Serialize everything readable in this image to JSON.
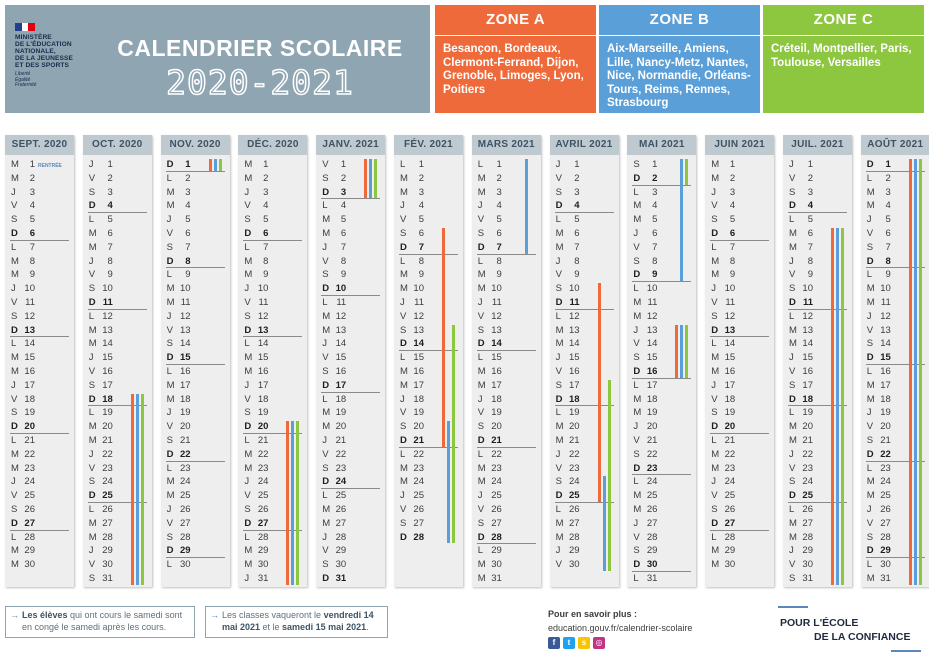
{
  "logo": {
    "lines": [
      "MINISTÈRE",
      "DE L'ÉDUCATION",
      "NATIONALE,",
      "DE LA JEUNESSE",
      "ET DES SPORTS"
    ],
    "motto": [
      "Liberté",
      "Égalité",
      "Fraternité"
    ]
  },
  "title": "CALENDRIER SCOLAIRE",
  "year": "2020-2021",
  "colors": {
    "zone_a": "#ef6a3a",
    "zone_b": "#5a9fd8",
    "zone_c": "#8dc63f",
    "header_bg": "#8fa6b2"
  },
  "zones": [
    {
      "name": "ZONE A",
      "cities": "Besançon, Bordeaux, Clermont-Ferrand, Dijon, Grenoble, Limoges, Lyon, Poitiers"
    },
    {
      "name": "ZONE B",
      "cities": "Aix-Marseille, Amiens, Lille, Nancy-Metz, Nantes, Nice, Normandie, Orléans-Tours, Reims, Rennes, Strasbourg"
    },
    {
      "name": "ZONE C",
      "cities": "Créteil, Montpellier, Paris, Toulouse, Versailles"
    }
  ],
  "months": [
    {
      "label": "SEPT. 2020",
      "start": 2,
      "days": 30,
      "note": "RENTRÉE"
    },
    {
      "label": "OCT. 2020",
      "start": 4,
      "days": 31
    },
    {
      "label": "NOV. 2020",
      "start": 0,
      "days": 30
    },
    {
      "label": "DÉC. 2020",
      "start": 2,
      "days": 31
    },
    {
      "label": "JANV. 2021",
      "start": 5,
      "days": 31
    },
    {
      "label": "FÉV. 2021",
      "start": 1,
      "days": 28
    },
    {
      "label": "MARS 2021",
      "start": 1,
      "days": 31
    },
    {
      "label": "AVRIL 2021",
      "start": 4,
      "days": 30
    },
    {
      "label": "MAI 2021",
      "start": 6,
      "days": 31
    },
    {
      "label": "JUIN 2021",
      "start": 2,
      "days": 30
    },
    {
      "label": "JUIL. 2021",
      "start": 4,
      "days": 31
    },
    {
      "label": "AOÛT 2021",
      "start": 0,
      "days": 31
    }
  ],
  "weekday_letters": [
    "D",
    "L",
    "M",
    "M",
    "J",
    "V",
    "S"
  ],
  "holidays": [
    {
      "month": 1,
      "zone": "a",
      "from": 18,
      "to": 31
    },
    {
      "month": 1,
      "zone": "b",
      "from": 18,
      "to": 31
    },
    {
      "month": 1,
      "zone": "c",
      "from": 18,
      "to": 31
    },
    {
      "month": 2,
      "zone": "a",
      "from": 1,
      "to": 1
    },
    {
      "month": 2,
      "zone": "b",
      "from": 1,
      "to": 1
    },
    {
      "month": 2,
      "zone": "c",
      "from": 1,
      "to": 1
    },
    {
      "month": 3,
      "zone": "a",
      "from": 20,
      "to": 31
    },
    {
      "month": 3,
      "zone": "b",
      "from": 20,
      "to": 31
    },
    {
      "month": 3,
      "zone": "c",
      "from": 20,
      "to": 31
    },
    {
      "month": 4,
      "zone": "a",
      "from": 1,
      "to": 3
    },
    {
      "month": 4,
      "zone": "b",
      "from": 1,
      "to": 3
    },
    {
      "month": 4,
      "zone": "c",
      "from": 1,
      "to": 3
    },
    {
      "month": 5,
      "zone": "a",
      "from": 6,
      "to": 21
    },
    {
      "month": 5,
      "zone": "c",
      "from": 13,
      "to": 28
    },
    {
      "month": 5,
      "zone": "b",
      "from": 20,
      "to": 28
    },
    {
      "month": 6,
      "zone": "b",
      "from": 1,
      "to": 7
    },
    {
      "month": 7,
      "zone": "a",
      "from": 10,
      "to": 25
    },
    {
      "month": 7,
      "zone": "c",
      "from": 17,
      "to": 30
    },
    {
      "month": 7,
      "zone": "b",
      "from": 24,
      "to": 30
    },
    {
      "month": 8,
      "zone": "c",
      "from": 1,
      "to": 2
    },
    {
      "month": 8,
      "zone": "b",
      "from": 1,
      "to": 9
    },
    {
      "month": 8,
      "zone": "a",
      "from": 13,
      "to": 16
    },
    {
      "month": 8,
      "zone": "b",
      "from": 13,
      "to": 16
    },
    {
      "month": 8,
      "zone": "c",
      "from": 13,
      "to": 16
    },
    {
      "month": 10,
      "zone": "a",
      "from": 6,
      "to": 31
    },
    {
      "month": 10,
      "zone": "b",
      "from": 6,
      "to": 31
    },
    {
      "month": 10,
      "zone": "c",
      "from": 6,
      "to": 31
    },
    {
      "month": 11,
      "zone": "a",
      "from": 1,
      "to": 31
    },
    {
      "month": 11,
      "zone": "b",
      "from": 1,
      "to": 31
    },
    {
      "month": 11,
      "zone": "c",
      "from": 1,
      "to": 31
    }
  ],
  "footer": {
    "note1_normal1": "Les élèves",
    "note1_rest": " qui ont cours le samedi sont en congé le samedi après les cours.",
    "note2_normal": "Les classes vaqueront le ",
    "note2_bold1": "vendredi 14 mai 2021",
    "note2_mid": " et le ",
    "note2_bold2": "samedi 15 mai 2021",
    "note2_end": ".",
    "more_label": "Pour en savoir plus :",
    "more_url": "education.gouv.fr/calendrier-scolaire",
    "confiance_line1": "POUR L'ÉCOLE",
    "confiance_line2": "DE LA CONFIANCE"
  }
}
